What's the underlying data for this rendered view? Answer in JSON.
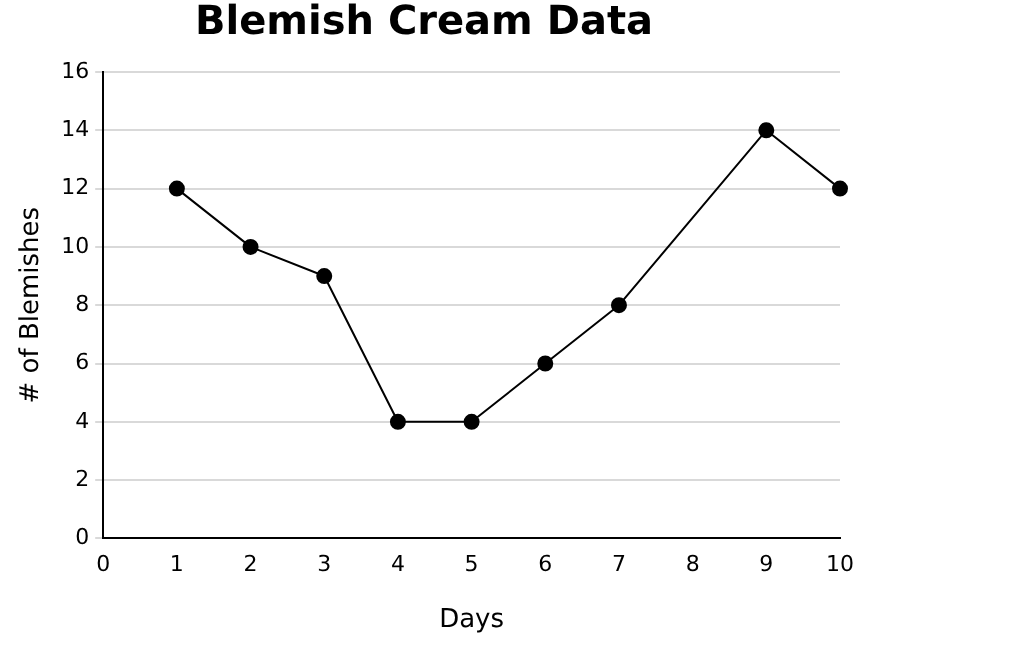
{
  "chart_data": {
    "type": "line",
    "title": "Blemish Cream Data",
    "xlabel": "Days",
    "ylabel": "# of Blemishes",
    "x": [
      1,
      2,
      3,
      4,
      5,
      6,
      7,
      9,
      10
    ],
    "series": [
      {
        "color": "#000000",
        "values": [
          12,
          10,
          9,
          4,
          4,
          6,
          8,
          14,
          12
        ]
      }
    ],
    "xlim": [
      0,
      10
    ],
    "xticks": [
      0,
      1,
      2,
      3,
      4,
      5,
      6,
      7,
      8,
      9,
      10
    ],
    "ylim": [
      0,
      16
    ],
    "yticks": [
      0,
      2,
      4,
      6,
      8,
      10,
      12,
      14,
      16
    ],
    "grid": "y",
    "legend": false,
    "marker": "circle",
    "line_style": "solid"
  }
}
